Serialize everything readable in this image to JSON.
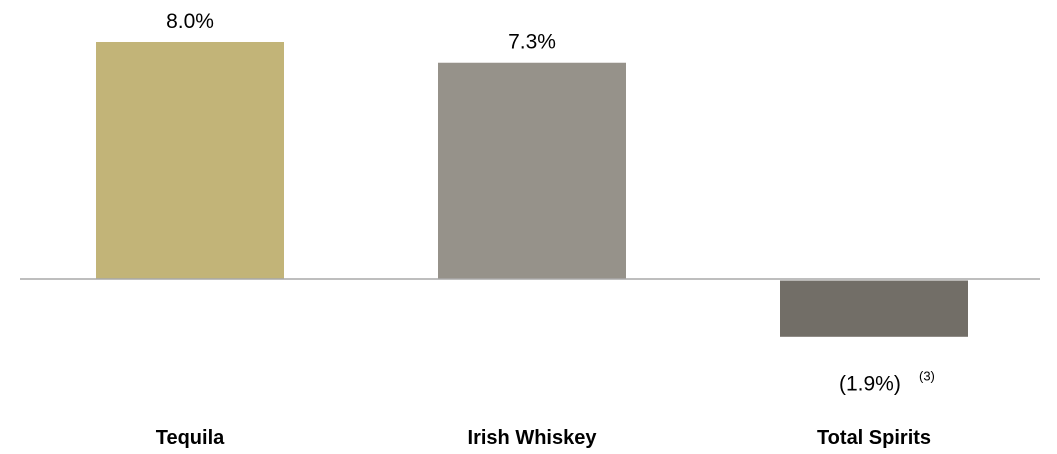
{
  "chart_data": {
    "type": "bar",
    "categories": [
      "Tequila",
      "Irish Whiskey",
      "Total Spirits"
    ],
    "values": [
      8.0,
      7.3,
      -1.9
    ],
    "value_labels": [
      "8.0%",
      "7.3%",
      "(1.9%)"
    ],
    "footnotes": [
      "",
      "",
      "(3)"
    ],
    "colors": [
      "#c2b478",
      "#96928a",
      "#726e67"
    ],
    "axis_color": "#a8a8a8",
    "ylim": [
      -1.9,
      8.0
    ],
    "grid": false,
    "legend": "none"
  }
}
